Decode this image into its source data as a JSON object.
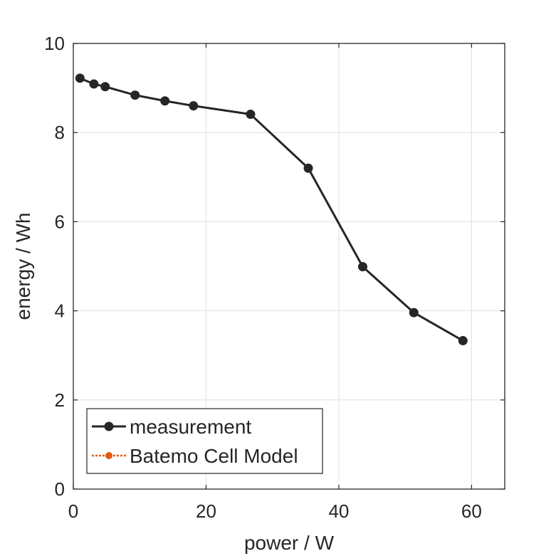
{
  "chart_data": {
    "type": "line",
    "xlabel": "power / W",
    "ylabel": "energy / Wh",
    "xlim": [
      0,
      65
    ],
    "ylim": [
      0,
      10
    ],
    "xticks": [
      "0",
      "20",
      "40",
      "60"
    ],
    "yticks": [
      "0",
      "2",
      "4",
      "6",
      "8",
      "10"
    ],
    "grid": true,
    "legend_position": "bottom-left",
    "series": [
      {
        "name": "measurement",
        "color": "#262626",
        "x": [
          1.0,
          3.1,
          4.8,
          9.3,
          13.8,
          18.1,
          26.7,
          35.4,
          43.6,
          51.3,
          58.7
        ],
        "y": [
          9.22,
          9.09,
          9.03,
          8.84,
          8.71,
          8.6,
          8.41,
          7.2,
          4.99,
          3.96,
          3.33
        ]
      },
      {
        "name": "Batemo Cell Model",
        "color": "#e05a12",
        "x": [],
        "y": []
      }
    ]
  }
}
